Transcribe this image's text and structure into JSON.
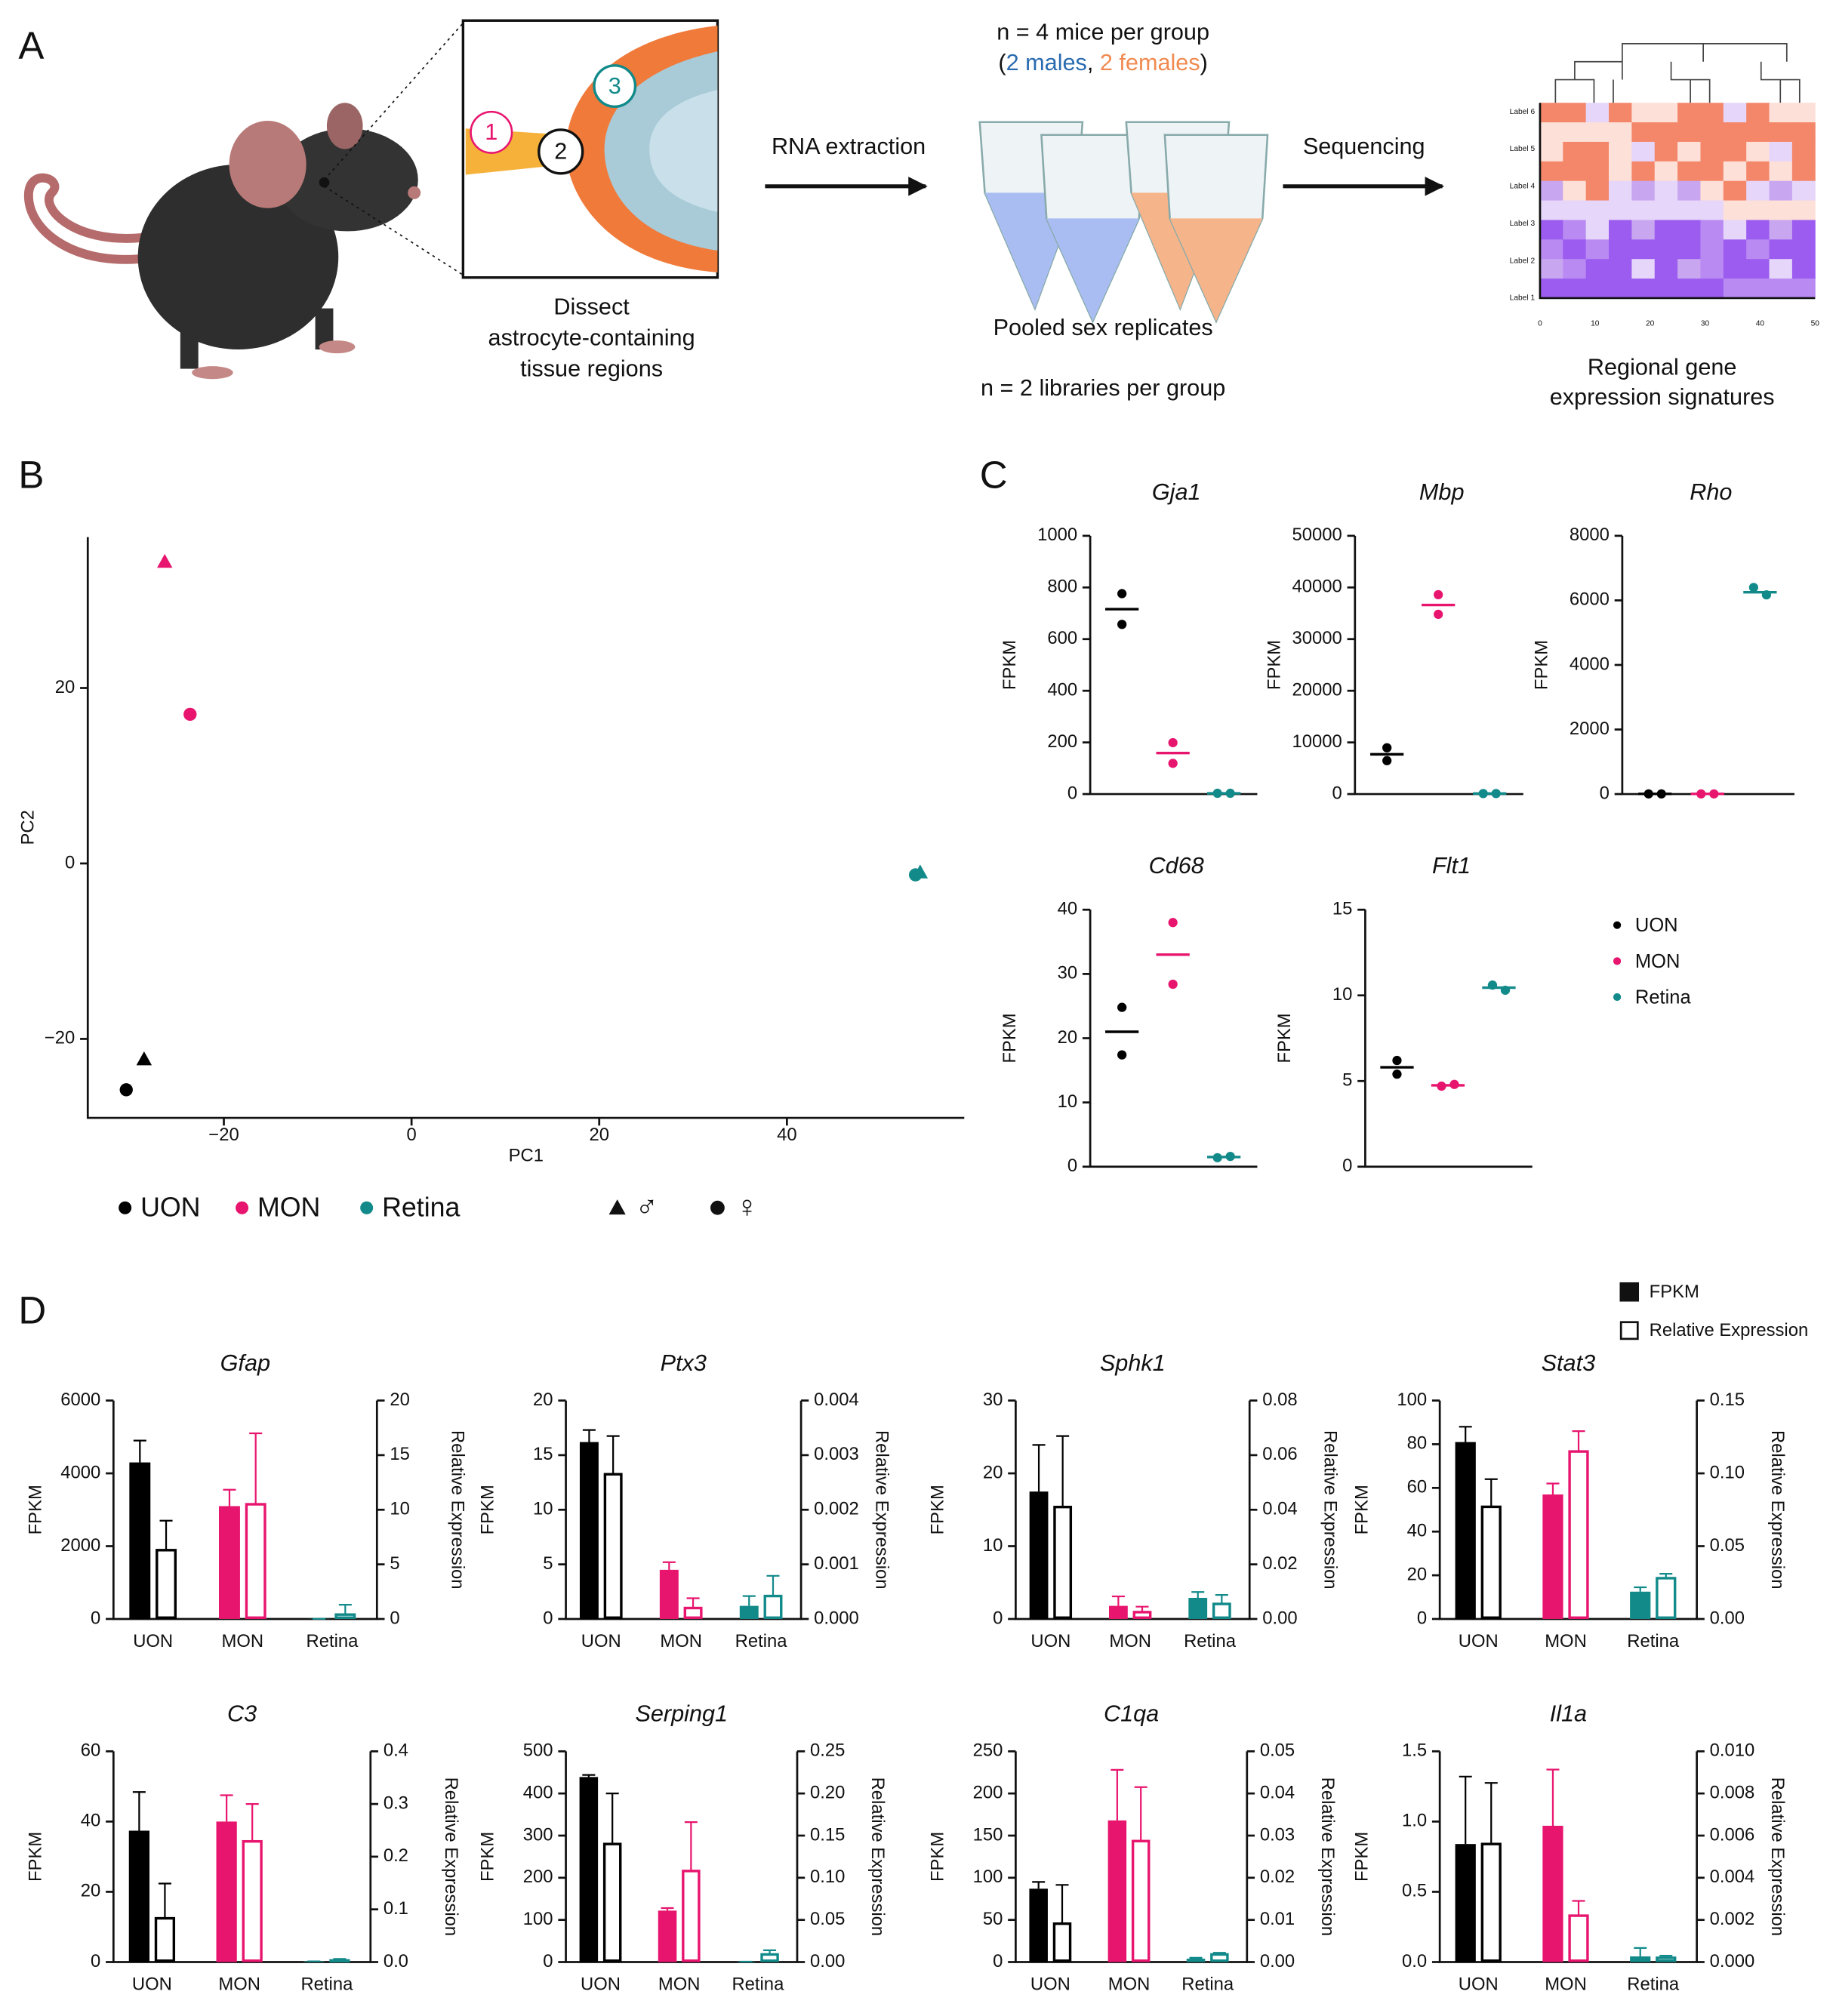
{
  "panel_labels": [
    "A",
    "B",
    "C",
    "D"
  ],
  "panel_a": {
    "n_line": "n =  4 mice per group",
    "sex_line": [
      "(",
      "2 males",
      ", ",
      "2 females",
      ")"
    ],
    "sex_colors": [
      "#111111",
      "#2a6bb0",
      "#111111",
      "#f08a50",
      "#111111"
    ],
    "region_numbers": [
      "1",
      "2",
      "3"
    ],
    "dissect": [
      "Dissect",
      "astrocyte-containing",
      "tissue regions"
    ],
    "step1": "RNA extraction",
    "step2": "Sequencing",
    "pooled": "Pooled sex replicates",
    "libraries": "n = 2 libraries per group",
    "signatures": [
      "Regional gene",
      "expression signatures"
    ],
    "heatmap_labels": [
      "Label 6",
      "Label 5",
      "Label 4",
      "Label 3",
      "Label 2",
      "Label 1"
    ],
    "heatmap_ticks": [
      0,
      10,
      20,
      30,
      40,
      50
    ]
  },
  "chart_data": [
    {
      "type": "scatter",
      "xlabel": "PC1",
      "ylabel": "PC2",
      "xlim": [
        -34.5,
        58.9
      ],
      "ylim": [
        -29,
        37.2
      ],
      "xticks": [
        {
          "value": -20,
          "label": "−20"
        },
        0,
        20,
        40
      ],
      "yticks": [
        {
          "value": -20,
          "label": "−20"
        },
        0,
        20
      ],
      "series": [
        {
          "name": "UON",
          "color": "#000000",
          "x": [
            -28.5,
            -30.4
          ],
          "y": [
            -22.3,
            -25.8
          ],
          "markers": [
            "triangle",
            "circle"
          ]
        },
        {
          "name": "MON",
          "color": "#e8156f",
          "x": [
            -26.3,
            -23.6
          ],
          "y": [
            34.4,
            17
          ],
          "markers": [
            "triangle",
            "circle"
          ]
        },
        {
          "name": "Retina",
          "color": "#128a8a",
          "x": [
            54.2,
            53.7
          ],
          "y": [
            -1.0,
            -1.3
          ],
          "markers": [
            "triangle",
            "circle"
          ]
        }
      ],
      "shape_legend": [
        {
          "label": "♂",
          "marker": "triangle"
        },
        {
          "label": "♀",
          "marker": "circle"
        }
      ]
    },
    {
      "type": "dot",
      "title": "Gja1",
      "ylabel": "FPKM",
      "ylim": [
        0,
        1000
      ],
      "yticks": [
        0,
        200,
        400,
        600,
        800,
        1000
      ],
      "series": [
        {
          "name": "UON",
          "color": "#000000",
          "values": [
            776,
            657
          ],
          "mean": 716
        },
        {
          "name": "MON",
          "color": "#e8156f",
          "values": [
            199,
            119
          ],
          "mean": 159
        },
        {
          "name": "Retina",
          "color": "#128a8a",
          "values": [
            3,
            3
          ],
          "mean": 3
        }
      ]
    },
    {
      "type": "dot",
      "title": "Mbp",
      "ylabel": "FPKM",
      "ylim": [
        0,
        50000
      ],
      "yticks": [
        0,
        10000,
        20000,
        30000,
        40000,
        50000
      ],
      "series": [
        {
          "name": "UON",
          "color": "#000000",
          "values": [
            8960,
            6470
          ],
          "mean": 7700
        },
        {
          "name": "MON",
          "color": "#e8156f",
          "values": [
            38600,
            34800
          ],
          "mean": 36600
        },
        {
          "name": "Retina",
          "color": "#128a8a",
          "values": [
            100,
            100
          ],
          "mean": 100
        }
      ]
    },
    {
      "type": "dot",
      "title": "Rho",
      "ylabel": "FPKM",
      "ylim": [
        0,
        8000
      ],
      "yticks": [
        0,
        2000,
        4000,
        6000,
        8000
      ],
      "series": [
        {
          "name": "UON",
          "color": "#000000",
          "values": [
            5,
            5
          ],
          "mean": 5
        },
        {
          "name": "MON",
          "color": "#e8156f",
          "values": [
            5,
            5
          ],
          "mean": 5
        },
        {
          "name": "Retina",
          "color": "#128a8a",
          "values": [
            6400,
            6170
          ],
          "mean": 6250
        }
      ]
    },
    {
      "type": "dot",
      "title": "Cd68",
      "ylabel": "FPKM",
      "ylim": [
        0,
        40
      ],
      "yticks": [
        0,
        10,
        20,
        30,
        40
      ],
      "series": [
        {
          "name": "UON",
          "color": "#000000",
          "values": [
            24.8,
            17.4
          ],
          "mean": 21
        },
        {
          "name": "MON",
          "color": "#e8156f",
          "values": [
            38,
            28.4
          ],
          "mean": 33
        },
        {
          "name": "Retina",
          "color": "#128a8a",
          "values": [
            1.4,
            1.6
          ],
          "mean": 1.5
        }
      ]
    },
    {
      "type": "dot",
      "title": "Flt1",
      "ylabel": "FPKM",
      "ylim": [
        0,
        15
      ],
      "yticks": [
        0,
        5,
        10,
        15
      ],
      "series": [
        {
          "name": "UON",
          "color": "#000000",
          "values": [
            6.2,
            5.4
          ],
          "mean": 5.8
        },
        {
          "name": "MON",
          "color": "#e8156f",
          "values": [
            4.7,
            4.8
          ],
          "mean": 4.75
        },
        {
          "name": "Retina",
          "color": "#128a8a",
          "values": [
            10.6,
            10.3
          ],
          "mean": 10.45
        }
      ]
    },
    {
      "type": "bar",
      "title": "Gfap",
      "ylabel": "FPKM",
      "y2label": "Relative Expression",
      "categories": [
        "UON",
        "MON",
        "Retina"
      ],
      "category_colors": [
        "#000000",
        "#e8156f",
        "#128a8a"
      ],
      "ylim": [
        0,
        6000
      ],
      "yticks": [
        0,
        2000,
        4000,
        6000
      ],
      "y2lim": [
        0,
        20
      ],
      "y2ticks": [
        0,
        5,
        10,
        15,
        20
      ],
      "series": [
        {
          "name": "FPKM",
          "style": "filled",
          "values": [
            4300,
            3100,
            5
          ],
          "errors": [
            600,
            450,
            0
          ]
        },
        {
          "name": "Relative Expression",
          "style": "open",
          "axis": "y2",
          "values": [
            6.3,
            10.5,
            0.4
          ],
          "errors": [
            2.7,
            6.5,
            0.9
          ]
        }
      ]
    },
    {
      "type": "bar",
      "title": "Ptx3",
      "ylabel": "FPKM",
      "y2label": "Relative Expression",
      "categories": [
        "UON",
        "MON",
        "Retina"
      ],
      "category_colors": [
        "#000000",
        "#e8156f",
        "#128a8a"
      ],
      "ylim": [
        0,
        20
      ],
      "yticks": [
        0,
        5,
        10,
        15,
        20
      ],
      "y2lim": [
        0,
        0.004
      ],
      "y2ticks": [
        {
          "value": 0,
          "label": "0.000"
        },
        {
          "value": 0.001,
          "label": "0.001"
        },
        {
          "value": 0.002,
          "label": "0.002"
        },
        {
          "value": 0.003,
          "label": "0.003"
        },
        {
          "value": 0.004,
          "label": "0.004"
        }
      ],
      "series": [
        {
          "name": "FPKM",
          "style": "filled",
          "values": [
            16.2,
            4.5,
            1.2
          ],
          "errors": [
            1.1,
            0.7,
            0.9
          ]
        },
        {
          "name": "Relative Expression",
          "style": "open",
          "axis": "y2",
          "values": [
            0.00265,
            0.0002,
            0.00042
          ],
          "errors": [
            0.0007,
            0.00018,
            0.00037
          ]
        }
      ]
    },
    {
      "type": "bar",
      "title": "Sphk1",
      "ylabel": "FPKM",
      "y2label": "Relative Expression",
      "categories": [
        "UON",
        "MON",
        "Retina"
      ],
      "category_colors": [
        "#000000",
        "#e8156f",
        "#128a8a"
      ],
      "ylim": [
        0,
        30
      ],
      "yticks": [
        0,
        10,
        20,
        30
      ],
      "y2lim": [
        0,
        0.08
      ],
      "y2ticks": [
        {
          "value": 0,
          "label": "0.00"
        },
        {
          "value": 0.02,
          "label": "0.02"
        },
        {
          "value": 0.04,
          "label": "0.04"
        },
        {
          "value": 0.06,
          "label": "0.06"
        },
        {
          "value": 0.08,
          "label": "0.08"
        }
      ],
      "series": [
        {
          "name": "FPKM",
          "style": "filled",
          "values": [
            17.5,
            1.8,
            2.9
          ],
          "errors": [
            6.4,
            1.3,
            0.8
          ]
        },
        {
          "name": "Relative Expression",
          "style": "open",
          "axis": "y2",
          "values": [
            0.041,
            0.0025,
            0.0055
          ],
          "errors": [
            0.026,
            0.002,
            0.0033
          ]
        }
      ]
    },
    {
      "type": "bar",
      "title": "Stat3",
      "ylabel": "FPKM",
      "y2label": "Relative Expression",
      "categories": [
        "UON",
        "MON",
        "Retina"
      ],
      "category_colors": [
        "#000000",
        "#e8156f",
        "#128a8a"
      ],
      "ylim": [
        0,
        100
      ],
      "yticks": [
        0,
        20,
        40,
        60,
        80,
        100
      ],
      "y2lim": [
        0,
        0.15
      ],
      "y2ticks": [
        {
          "value": 0,
          "label": "0.00"
        },
        {
          "value": 0.05,
          "label": "0.05"
        },
        {
          "value": 0.1,
          "label": "0.10"
        },
        {
          "value": 0.15,
          "label": "0.15"
        }
      ],
      "series": [
        {
          "name": "FPKM",
          "style": "filled",
          "values": [
            81,
            57,
            12.5
          ],
          "errors": [
            7,
            5,
            2
          ]
        },
        {
          "name": "Relative Expression",
          "style": "open",
          "axis": "y2",
          "values": [
            0.077,
            0.115,
            0.028
          ],
          "errors": [
            0.019,
            0.014,
            0.003
          ]
        }
      ]
    },
    {
      "type": "bar",
      "title": "C3",
      "ylabel": "FPKM",
      "y2label": "Relative Expression",
      "categories": [
        "UON",
        "MON",
        "Retina"
      ],
      "category_colors": [
        "#000000",
        "#e8156f",
        "#128a8a"
      ],
      "ylim": [
        0,
        60
      ],
      "yticks": [
        0,
        20,
        40,
        60
      ],
      "y2lim": [
        0,
        0.4
      ],
      "y2ticks": [
        {
          "value": 0,
          "label": "0.0"
        },
        0.1,
        0.2,
        0.3,
        0.4
      ],
      "series": [
        {
          "name": "FPKM",
          "style": "filled",
          "values": [
            37.4,
            40,
            0.2
          ],
          "errors": [
            11,
            7.5,
            0
          ]
        },
        {
          "name": "Relative Expression",
          "style": "open",
          "axis": "y2",
          "values": [
            0.083,
            0.229,
            0.003
          ],
          "errors": [
            0.066,
            0.071,
            0.003
          ]
        }
      ]
    },
    {
      "type": "bar",
      "title": "Serping1",
      "ylabel": "FPKM",
      "y2label": "Relative Expression",
      "categories": [
        "UON",
        "MON",
        "Retina"
      ],
      "category_colors": [
        "#000000",
        "#e8156f",
        "#128a8a"
      ],
      "ylim": [
        0,
        500
      ],
      "yticks": [
        0,
        100,
        200,
        300,
        400,
        500
      ],
      "y2lim": [
        0,
        0.25
      ],
      "y2ticks": [
        {
          "value": 0,
          "label": "0.00"
        },
        0.05,
        {
          "value": 0.1,
          "label": "0.10"
        },
        0.15,
        {
          "value": 0.2,
          "label": "0.20"
        },
        0.25
      ],
      "series": [
        {
          "name": "FPKM",
          "style": "filled",
          "values": [
            439,
            122,
            1
          ],
          "errors": [
            5,
            6,
            0
          ]
        },
        {
          "name": "Relative Expression",
          "style": "open",
          "axis": "y2",
          "values": [
            0.14,
            0.108,
            0.009
          ],
          "errors": [
            0.06,
            0.058,
            0.005
          ]
        }
      ]
    },
    {
      "type": "bar",
      "title": "C1qa",
      "ylabel": "FPKM",
      "y2label": "Relative Expression",
      "categories": [
        "UON",
        "MON",
        "Retina"
      ],
      "category_colors": [
        "#000000",
        "#e8156f",
        "#128a8a"
      ],
      "ylim": [
        0,
        250
      ],
      "yticks": [
        0,
        50,
        100,
        150,
        200,
        250
      ],
      "y2lim": [
        0,
        0.05
      ],
      "y2ticks": [
        {
          "value": 0,
          "label": "0.00"
        },
        0.01,
        0.02,
        0.03,
        0.04,
        0.05
      ],
      "series": [
        {
          "name": "FPKM",
          "style": "filled",
          "values": [
            87,
            168,
            4
          ],
          "errors": [
            8,
            60,
            1
          ]
        },
        {
          "name": "Relative Expression",
          "style": "open",
          "axis": "y2",
          "values": [
            0.0091,
            0.0287,
            0.0018
          ],
          "errors": [
            0.0092,
            0.0128,
            0.0004
          ]
        }
      ]
    },
    {
      "type": "bar",
      "title": "Il1a",
      "ylabel": "FPKM",
      "y2label": "Relative Expression",
      "categories": [
        "UON",
        "MON",
        "Retina"
      ],
      "category_colors": [
        "#000000",
        "#e8156f",
        "#128a8a"
      ],
      "ylim": [
        0,
        1.5
      ],
      "yticks": [
        {
          "value": 0,
          "label": "0.0"
        },
        0.5,
        {
          "value": 1,
          "label": "1.0"
        },
        1.5
      ],
      "y2lim": [
        0,
        0.01
      ],
      "y2ticks": [
        {
          "value": 0,
          "label": "0.000"
        },
        0.002,
        0.004,
        0.006,
        0.008,
        {
          "value": 0.01,
          "label": "0.010"
        }
      ],
      "series": [
        {
          "name": "FPKM",
          "style": "filled",
          "values": [
            0.84,
            0.97,
            0.04
          ],
          "errors": [
            0.48,
            0.4,
            0.06
          ]
        },
        {
          "name": "Relative Expression",
          "style": "open",
          "axis": "y2",
          "values": [
            0.0056,
            0.0022,
            0.0002
          ],
          "errors": [
            0.0029,
            0.0007,
            0.0001
          ]
        }
      ]
    }
  ]
}
